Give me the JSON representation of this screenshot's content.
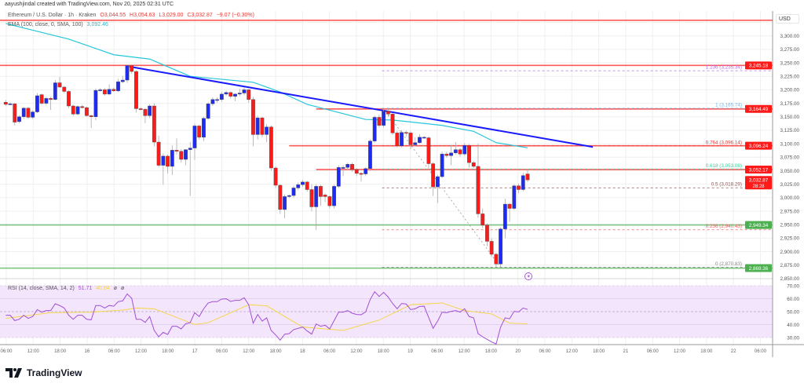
{
  "header": {
    "credit": "aayushjindal created with TradingView.com, Nov 20, 2025 02:31 UTC",
    "symbol": "Ethereum / U.S. Dollar · 1h · Kraken",
    "open": "O3,044.55",
    "high": "H3,054.63",
    "low": "L3,029.00",
    "close": "C3,032.87",
    "change": "−9.07 (−0.30%)",
    "ema_label": "EMA (100, close, 0, SMA, 100)",
    "ema_value": "3,092.46",
    "currency": "USD"
  },
  "rsi_legend": {
    "label": "RSI (14, close, SMA, 14, 2)",
    "rsi": "51.71",
    "sma": "40.64",
    "extra1": "ø",
    "extra2": "ø"
  },
  "logo": {
    "text": "TradingView"
  },
  "colors": {
    "up": "#1f2cf0",
    "down": "#ff1a1a",
    "ema": "#26c6da",
    "trendline": "#1a1aff",
    "resistance": "#ff3b3b",
    "support": "#66bb6a",
    "rsi": "#a24fd3",
    "rsi_sma": "#f5d53b",
    "rsi_band": "#f3e5fc"
  },
  "chart_data": [
    {
      "type": "candlestick",
      "title": "",
      "ylim": [
        2840,
        3330
      ],
      "y_ticks": [
        "3,300.00",
        "3,275.00",
        "3,250.00",
        "3,225.00",
        "3,200.00",
        "3,175.00",
        "3,150.00",
        "3,125.00",
        "3,100.00",
        "3,075.00",
        "3,050.00",
        "3,025.00",
        "3,000.00",
        "2,975.00",
        "2,950.00",
        "2,925.00",
        "2,900.00",
        "2,875.00",
        "2,850.00"
      ],
      "x_ticks": [
        "06:00",
        "12:00",
        "18:00",
        "16",
        "06:00",
        "12:00",
        "18:00",
        "17",
        "06:00",
        "12:00",
        "18:00",
        "18",
        "06:00",
        "12:00",
        "18:00",
        "19",
        "06:00",
        "12:00",
        "18:00",
        "20",
        "06:00",
        "12:00",
        "18:00",
        "21",
        "06:00",
        "12:00",
        "18:00",
        "22",
        "06:00"
      ],
      "candles_ohlc": [
        [
          3177,
          3181,
          3170,
          3173
        ],
        [
          3173,
          3177,
          3172,
          3174
        ],
        [
          3174,
          3176,
          3134,
          3140
        ],
        [
          3141,
          3153,
          3138,
          3150
        ],
        [
          3150,
          3168,
          3146,
          3166
        ],
        [
          3166,
          3168,
          3146,
          3149
        ],
        [
          3149,
          3162,
          3146,
          3159
        ],
        [
          3159,
          3194,
          3157,
          3189
        ],
        [
          3191,
          3193,
          3172,
          3175
        ],
        [
          3175,
          3187,
          3172,
          3184
        ],
        [
          3184,
          3187,
          3163,
          3182
        ],
        [
          3182,
          3218,
          3180,
          3213
        ],
        [
          3213,
          3224,
          3204,
          3205
        ],
        [
          3205,
          3207,
          3194,
          3197
        ],
        [
          3197,
          3199,
          3166,
          3170
        ],
        [
          3170,
          3172,
          3152,
          3155
        ],
        [
          3155,
          3171,
          3153,
          3169
        ],
        [
          3169,
          3172,
          3165,
          3167
        ],
        [
          3167,
          3169,
          3150,
          3152
        ],
        [
          3152,
          3154,
          3129,
          3150
        ],
        [
          3150,
          3202,
          3144,
          3199
        ],
        [
          3199,
          3203,
          3197,
          3200
        ],
        [
          3200,
          3203,
          3189,
          3192
        ],
        [
          3192,
          3210,
          3190,
          3201
        ],
        [
          3201,
          3204,
          3196,
          3198
        ],
        [
          3198,
          3220,
          3196,
          3215
        ],
        [
          3215,
          3226,
          3212,
          3218
        ],
        [
          3218,
          3246,
          3213,
          3245
        ],
        [
          3245,
          3246,
          3230,
          3234
        ],
        [
          3234,
          3236,
          3158,
          3165
        ],
        [
          3165,
          3167,
          3162,
          3164
        ],
        [
          3164,
          3166,
          3138,
          3152
        ],
        [
          3152,
          3173,
          3148,
          3170
        ],
        [
          3170,
          3175,
          3095,
          3103
        ],
        [
          3103,
          3115,
          3056,
          3060
        ],
        [
          3060,
          3082,
          3024,
          3077
        ],
        [
          3077,
          3080,
          3045,
          3058
        ],
        [
          3058,
          3097,
          3042,
          3088
        ],
        [
          3088,
          3110,
          3080,
          3086
        ],
        [
          3086,
          3090,
          3065,
          3071
        ],
        [
          3071,
          3090,
          3060,
          3089
        ],
        [
          3089,
          3103,
          3003,
          3092
        ],
        [
          3092,
          3137,
          3070,
          3133
        ],
        [
          3133,
          3135,
          3108,
          3112
        ],
        [
          3112,
          3150,
          3105,
          3147
        ],
        [
          3147,
          3177,
          3144,
          3174
        ],
        [
          3174,
          3186,
          3170,
          3182
        ],
        [
          3182,
          3186,
          3176,
          3182
        ],
        [
          3182,
          3196,
          3178,
          3192
        ],
        [
          3192,
          3198,
          3189,
          3195
        ],
        [
          3195,
          3197,
          3184,
          3188
        ],
        [
          3188,
          3194,
          3179,
          3192
        ],
        [
          3192,
          3202,
          3188,
          3194
        ],
        [
          3194,
          3205,
          3190,
          3200
        ],
        [
          3200,
          3201,
          3176,
          3182
        ],
        [
          3182,
          3187,
          3095,
          3117
        ],
        [
          3117,
          3152,
          3108,
          3148
        ],
        [
          3148,
          3150,
          3112,
          3117
        ],
        [
          3117,
          3136,
          3103,
          3131
        ],
        [
          3131,
          3134,
          3050,
          3055
        ],
        [
          3055,
          3058,
          3018,
          3023
        ],
        [
          3023,
          3025,
          2970,
          2978
        ],
        [
          2978,
          3006,
          2962,
          3002
        ],
        [
          3002,
          3006,
          2999,
          3004
        ],
        [
          3004,
          3022,
          3000,
          3018
        ],
        [
          3018,
          3028,
          3014,
          3024
        ],
        [
          3024,
          3033,
          3020,
          3029
        ],
        [
          3029,
          3031,
          3011,
          3015
        ],
        [
          3015,
          3025,
          2975,
          2983
        ],
        [
          2983,
          3025,
          2940,
          3021
        ],
        [
          3021,
          3024,
          2985,
          3002
        ],
        [
          3005,
          3008,
          2992,
          3002
        ],
        [
          3002,
          3004,
          2980,
          2985
        ],
        [
          2985,
          3024,
          2980,
          3021
        ],
        [
          3021,
          3060,
          3018,
          3056
        ],
        [
          3056,
          3060,
          3040,
          3056
        ],
        [
          3056,
          3065,
          3052,
          3062
        ],
        [
          3062,
          3065,
          3048,
          3052
        ],
        [
          3052,
          3055,
          3040,
          3045
        ],
        [
          3045,
          3047,
          3030,
          3044
        ],
        [
          3044,
          3056,
          3040,
          3054
        ],
        [
          3054,
          3108,
          3050,
          3105
        ],
        [
          3105,
          3152,
          3102,
          3149
        ],
        [
          3149,
          3154,
          3130,
          3134
        ],
        [
          3134,
          3163,
          3130,
          3160
        ],
        [
          3160,
          3164,
          3150,
          3155
        ],
        [
          3155,
          3157,
          3116,
          3120
        ],
        [
          3120,
          3124,
          3093,
          3096
        ],
        [
          3096,
          3125,
          3093,
          3121
        ],
        [
          3121,
          3124,
          3114,
          3120
        ],
        [
          3120,
          3123,
          3090,
          3098
        ],
        [
          3098,
          3112,
          3095,
          3102
        ],
        [
          3102,
          3118,
          3100,
          3112
        ],
        [
          3112,
          3114,
          3110,
          3112
        ],
        [
          3111,
          3114,
          3055,
          3063
        ],
        [
          3063,
          3066,
          3003,
          3020
        ],
        [
          3020,
          3042,
          2990,
          3039
        ],
        [
          3039,
          3085,
          3036,
          3081
        ],
        [
          3081,
          3085,
          3074,
          3078
        ],
        [
          3078,
          3098,
          3060,
          3083
        ],
        [
          3083,
          3103,
          3080,
          3089
        ],
        [
          3089,
          3092,
          3076,
          3081
        ],
        [
          3081,
          3101,
          3078,
          3097
        ],
        [
          3097,
          3099,
          3056,
          3065
        ],
        [
          3065,
          3068,
          3055,
          3058
        ],
        [
          3058,
          3100,
          2963,
          2970
        ],
        [
          2970,
          2980,
          2944,
          2949
        ],
        [
          2949,
          2952,
          2910,
          2919
        ],
        [
          2919,
          2925,
          2890,
          2895
        ],
        [
          2895,
          2898,
          2871,
          2877
        ],
        [
          2877,
          2945,
          2872,
          2942
        ],
        [
          2942,
          2998,
          2925,
          2988
        ],
        [
          2988,
          2990,
          2955,
          2980
        ],
        [
          2980,
          3025,
          2977,
          3022
        ],
        [
          3022,
          3026,
          3008,
          3015
        ],
        [
          3015,
          3046,
          3012,
          3041
        ],
        [
          3044,
          3054,
          3029,
          3033
        ]
      ],
      "ema_100": [
        [
          1,
          3323
        ],
        [
          15,
          3294
        ],
        [
          25,
          3265
        ],
        [
          33,
          3257
        ],
        [
          42,
          3225
        ],
        [
          56,
          3214
        ],
        [
          62,
          3196
        ],
        [
          68,
          3173
        ],
        [
          81,
          3145
        ],
        [
          87,
          3144
        ],
        [
          98,
          3134
        ],
        [
          105,
          3123
        ],
        [
          110,
          3102
        ],
        [
          117,
          3092.46
        ]
      ],
      "trendline": {
        "from": [
          28.5,
          3243
        ],
        "to": [
          131.5,
          3094
        ]
      },
      "horizontal_levels": [
        {
          "price": 3329,
          "start_candle": 0,
          "color": "#ff3b3b"
        },
        {
          "price": 3245.18,
          "label": "3,245.18",
          "start_candle": 0,
          "color": "#ff3b3b"
        },
        {
          "price": 3164.49,
          "label": "3,164.49",
          "start_candle": 70,
          "color": "#ff3b3b"
        },
        {
          "price": 3096.24,
          "label": "3,096.24",
          "start_candle": 64,
          "color": "#ff3b3b"
        },
        {
          "price": 3052.17,
          "label": "3,052.17",
          "start_candle": 70,
          "color": "#ff3b3b"
        },
        {
          "price": 2949.34,
          "label": "2,949.34",
          "start_candle": 0,
          "color": "#66bb6a"
        },
        {
          "price": 2869.36,
          "label": "2,869.36",
          "start_candle": 0,
          "color": "#66bb6a"
        }
      ],
      "last_price": {
        "label": "3,032.87",
        "countdown": "28:28",
        "price": 3032.87
      },
      "fib_levels": [
        {
          "ratio": "1.236",
          "label": "1.236 (3,235.34)",
          "price": 3235.34,
          "color": "#b46cf0"
        },
        {
          "ratio": "1",
          "label": "1 (3,165.74)",
          "price": 3165.74,
          "color": "#64b5f6"
        },
        {
          "ratio": "0.764",
          "label": "0.764 (3,096.14)",
          "price": 3096.14,
          "color": "#e53935"
        },
        {
          "ratio": "0.618",
          "label": "0.618 (3,053.08)",
          "price": 3053.08,
          "color": "#3ccf9a"
        },
        {
          "ratio": "0.5",
          "label": "0.5 (3,018.29)",
          "price": 3018.29,
          "color": "#8d5a5a"
        },
        {
          "ratio": "0.236",
          "label": "0.236 (2,940.43)",
          "price": 2940.43,
          "color": "#f06060"
        },
        {
          "ratio": "0",
          "label": "0 (2,870.83)",
          "price": 2870.83,
          "color": "#888888"
        }
      ],
      "fib_anchor": {
        "from": [
          85,
          3165.74
        ],
        "to": [
          111,
          2870.83
        ]
      }
    },
    {
      "type": "line",
      "title": "",
      "ylim": [
        20,
        75
      ],
      "y_ticks": [
        "70.00",
        "60.00",
        "50.00",
        "40.00",
        "30.00"
      ],
      "band": [
        30,
        70
      ],
      "rsi": [
        47.2,
        47.2,
        43.1,
        44.1,
        47.2,
        44.8,
        46.2,
        51.6,
        49.6,
        50.8,
        50.8,
        56.1,
        54.7,
        52.8,
        47.2,
        44.1,
        47.2,
        47.2,
        44.1,
        43.7,
        54.7,
        54.7,
        52.8,
        54.8,
        54.2,
        57.7,
        58.3,
        63.7,
        60.3,
        44.1,
        44.1,
        41.7,
        46.2,
        35.5,
        30.6,
        34.0,
        32.4,
        38.7,
        38.7,
        36.7,
        40.7,
        41.5,
        49.2,
        46.2,
        52.2,
        56.7,
        57.7,
        57.7,
        59.7,
        59.9,
        57.9,
        58.7,
        58.7,
        60.7,
        55.3,
        41.1,
        47.8,
        42.7,
        45.2,
        35.5,
        32.0,
        28.0,
        32.6,
        33.0,
        36.1,
        37.1,
        38.1,
        35.1,
        32.6,
        40.5,
        38.7,
        39.5,
        36.7,
        43.1,
        49.6,
        49.6,
        50.8,
        48.8,
        47.8,
        47.6,
        49.8,
        59.3,
        65.4,
        61.7,
        64.9,
        61.3,
        56.3,
        52.2,
        56.3,
        55.9,
        51.6,
        52.2,
        54.0,
        54.2,
        45.6,
        37.1,
        42.7,
        49.6,
        49.2,
        50.2,
        50.8,
        49.6,
        52.2,
        46.2,
        45.2,
        33.0,
        30.6,
        28.6,
        26.6,
        25.0,
        38.1,
        45.2,
        44.5,
        50.2,
        49.8,
        52.8,
        51.71
      ],
      "rsi_sma": [
        [
          1,
          44.8
        ],
        [
          11,
          49.2
        ],
        [
          20,
          49.6
        ],
        [
          27,
          51.2
        ],
        [
          30,
          52.8
        ],
        [
          34,
          52.2
        ],
        [
          43,
          40.1
        ],
        [
          46,
          41.5
        ],
        [
          55,
          55.3
        ],
        [
          59,
          54.5
        ],
        [
          67,
          38.1
        ],
        [
          76,
          35.5
        ],
        [
          84,
          43.5
        ],
        [
          91,
          55.3
        ],
        [
          98,
          56.7
        ],
        [
          103,
          50.8
        ],
        [
          109,
          48.2
        ],
        [
          113,
          41.1
        ],
        [
          117,
          40.64
        ]
      ]
    }
  ]
}
